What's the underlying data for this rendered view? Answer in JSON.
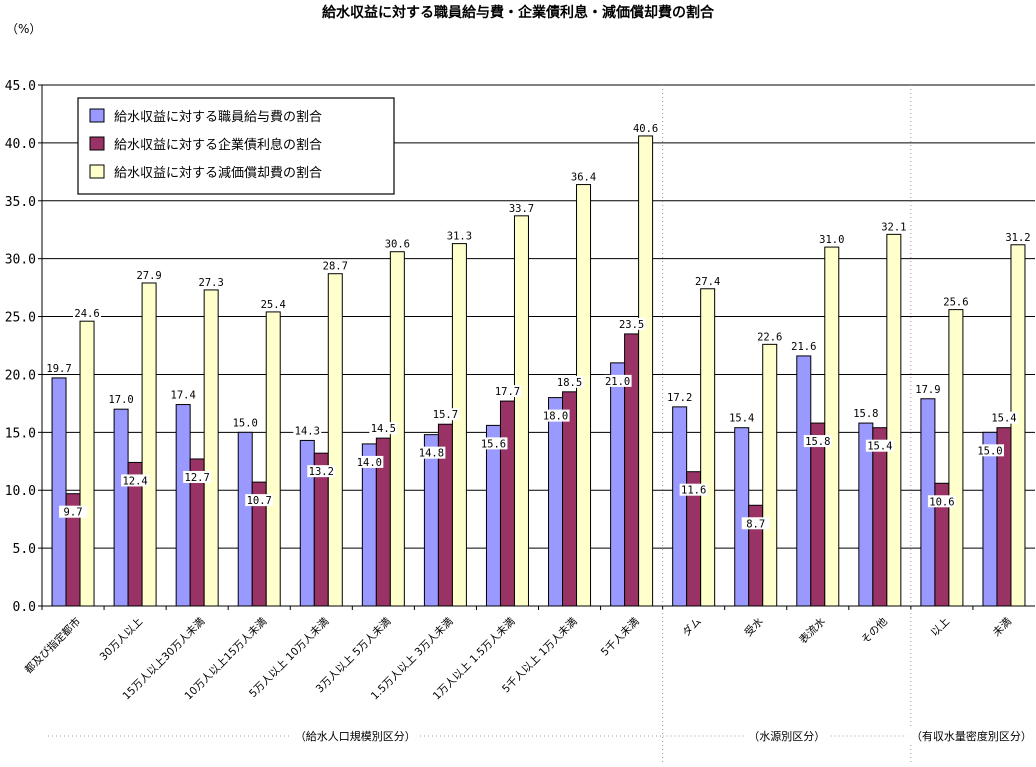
{
  "chart_data": {
    "type": "bar",
    "title": "給水収益に対する職員給与費・企業債利息・減価償却費の割合",
    "unit": "（%）",
    "ylim": [
      0,
      45
    ],
    "yticks": [
      "0.0",
      "5.0",
      "10.0",
      "15.0",
      "20.0",
      "25.0",
      "30.0",
      "35.0",
      "40.0",
      "45.0"
    ],
    "grid": true,
    "legend_position": "top-left",
    "categories": [
      "都及び指定都市",
      "30万人以上",
      "15万人以上30万人未満",
      "10万人以上15万人未満",
      "5万人以上 10万人未満",
      "3万人以上 5万人未満",
      "1.5万人以上 3万人未満",
      "1万人以上 1.5万人未満",
      "5千人以上 1万人未満",
      "5千人未満",
      "ダム",
      "受水",
      "表流水",
      "その他",
      "以上",
      "未満"
    ],
    "series": [
      {
        "name": "給水収益に対する職員給与費の割合",
        "color": "#9999ff",
        "values": [
          19.7,
          17.0,
          17.4,
          15.0,
          14.3,
          14.0,
          14.8,
          15.6,
          18.0,
          21.0,
          17.2,
          15.4,
          21.6,
          15.8,
          17.9,
          15.0
        ]
      },
      {
        "name": "給水収益に対する企業債利息の割合",
        "color": "#993366",
        "values": [
          9.7,
          12.4,
          12.7,
          10.7,
          13.2,
          14.5,
          15.7,
          17.7,
          18.5,
          23.5,
          11.6,
          8.7,
          15.8,
          15.4,
          10.6,
          15.4
        ]
      },
      {
        "name": "給水収益に対する減価償却費の割合",
        "color": "#ffffcc",
        "values": [
          24.6,
          27.9,
          27.3,
          25.4,
          28.7,
          30.6,
          31.3,
          33.7,
          36.4,
          40.6,
          27.4,
          22.6,
          31.0,
          32.1,
          25.6,
          31.2
        ]
      }
    ],
    "groups": [
      {
        "label": "（給水人口規模別区分）",
        "from": 0,
        "to": 9
      },
      {
        "label": "（水源別区分）",
        "from": 10,
        "to": 13
      },
      {
        "label": "（有収水量密度別区分）",
        "from": 14,
        "to": 15
      }
    ]
  }
}
